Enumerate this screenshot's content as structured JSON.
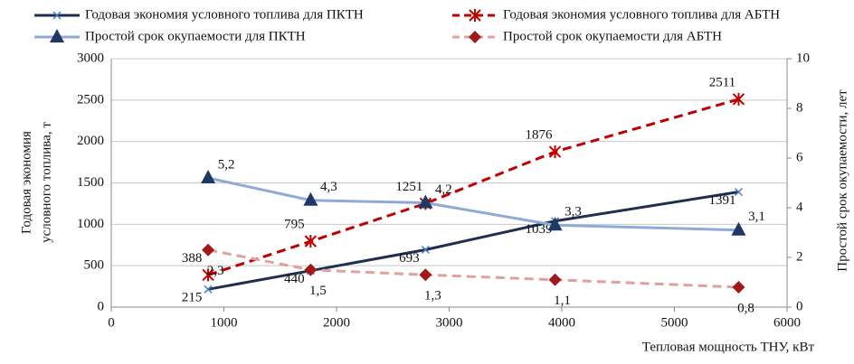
{
  "chart_data": {
    "type": "line",
    "xlabel": "Тепловая мощность ТНУ, кВт",
    "ylabel": [
      "Годовая экономия",
      "условного топлива, т"
    ],
    "y2label": "Простой срок окупаемости, лет",
    "x": [
      860,
      1770,
      2790,
      3940,
      5570
    ],
    "xlim": [
      0,
      6000
    ],
    "xticks": [
      0,
      1000,
      2000,
      3000,
      4000,
      5000,
      6000
    ],
    "ylim": [
      0,
      3000
    ],
    "yticks": [
      0,
      500,
      1000,
      1500,
      2000,
      2500,
      3000
    ],
    "y2lim": [
      0,
      10
    ],
    "y2ticks": [
      0,
      2,
      4,
      6,
      8,
      10
    ],
    "grid": true,
    "series": [
      {
        "name": "Годовая экономия условного топлива для ПКТН",
        "color": "#1f2f4f",
        "marker": "x",
        "dash": false,
        "values": [
          215,
          440,
          693,
          1039,
          1391
        ]
      },
      {
        "name": "Годовая экономия условного топлива для АБТН",
        "color": "#c00000",
        "marker": "asterisk",
        "dash": true,
        "values": [
          388,
          795,
          1251,
          1876,
          2511
        ]
      },
      {
        "name": "Простой срок окупаемости для ПКТН",
        "color": "#8eaad6",
        "marker": "triangle",
        "dash": false,
        "axis": "y2",
        "values": [
          5.2,
          4.3,
          4.2,
          3.3,
          3.1
        ],
        "value_labels": [
          "5,2",
          "4,3",
          "4,2",
          "3,3",
          "3,1"
        ]
      },
      {
        "name": "Простой срок окупаемости для АБТН",
        "color": "#e0a0a0",
        "marker": "diamond",
        "dash": true,
        "axis": "y2",
        "values": [
          2.3,
          1.5,
          1.3,
          1.1,
          0.8
        ],
        "value_labels": [
          "2,3",
          "1,5",
          "1,3",
          "1,1",
          "0,8"
        ]
      }
    ]
  }
}
